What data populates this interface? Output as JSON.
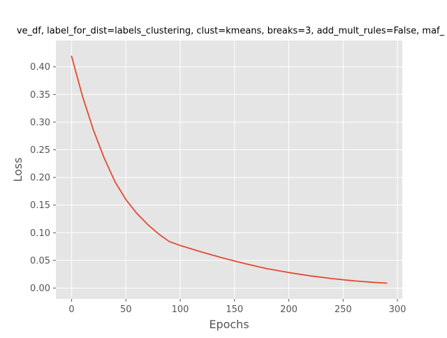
{
  "chart_data": {
    "type": "line",
    "title": "ve_df, label_for_dist=labels_clustering, clust=kmeans, breaks=3, add_mult_rules=False, maf_",
    "xlabel": "Epochs",
    "ylabel": "Loss",
    "xlim": [
      -14.5,
      304.5
    ],
    "ylim": [
      -0.0196,
      0.4476
    ],
    "grid": true,
    "legend": "none",
    "line_color": "#E24A33",
    "background_color": "#E5E5E5",
    "x_ticks": [
      0,
      50,
      100,
      150,
      200,
      250,
      300
    ],
    "x_tick_labels": [
      "0",
      "50",
      "100",
      "150",
      "200",
      "250",
      "300"
    ],
    "y_ticks": [
      0.0,
      0.05,
      0.1,
      0.15,
      0.2,
      0.25,
      0.3,
      0.35,
      0.4
    ],
    "y_tick_labels": [
      "0.00",
      "0.05",
      "0.10",
      "0.15",
      "0.20",
      "0.25",
      "0.30",
      "0.35",
      "0.40"
    ],
    "series": [
      {
        "x": [
          0,
          10,
          20,
          30,
          40,
          50,
          60,
          70,
          80,
          90,
          100,
          120,
          140,
          160,
          180,
          200,
          220,
          240,
          260,
          280,
          290
        ],
        "values": [
          0.419,
          0.347,
          0.286,
          0.235,
          0.192,
          0.16,
          0.135,
          0.115,
          0.098,
          0.084,
          0.077,
          0.065,
          0.054,
          0.044,
          0.035,
          0.028,
          0.022,
          0.017,
          0.013,
          0.01,
          0.009
        ]
      }
    ]
  }
}
